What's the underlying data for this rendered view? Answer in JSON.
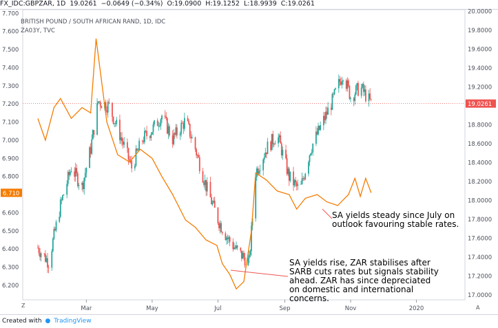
{
  "header": {
    "symbol": "FX_IDC:GBPZAR, 1D",
    "last": "19.0261",
    "change": "−0.0649 (−0.34%)",
    "open": "O:19.0900",
    "high": "H:19.1252",
    "low": "L:18.9939",
    "close": "C:19.0261",
    "series_title": "BRITISH POUND / SOUTH AFRICAN RAND, 1D, IDC",
    "overlay_title": "ZA03Y, TVC"
  },
  "annotations": {
    "note_july": "SA yields steady since July on\noutlook favouring stable rates.",
    "note_cut": "SA yields rise, ZAR stabilises after\nSARB cuts rates but signals stability\nahead. ZAR has since depreciated\non domestic and international\nconcerns."
  },
  "footer": {
    "created_with": "Created with",
    "brand": "TradingView"
  },
  "corner": {
    "left": "Z",
    "right": "A"
  },
  "colors": {
    "up": "#26a69a",
    "down": "#ef5350",
    "yield": "#f57c00",
    "last_price": "#ef5350",
    "yield_label": "#f57c00"
  },
  "chart_data": {
    "type": "line",
    "x_ticks": [
      "Mar",
      "May",
      "Jul",
      "Sep",
      "Nov",
      "2020"
    ],
    "left_axis": {
      "label": "ZA03Y",
      "ticks": [
        "7.700",
        "7.600",
        "7.500",
        "7.400",
        "7.300",
        "7.200",
        "7.100",
        "7.000",
        "6.900",
        "6.800",
        "6.600",
        "6.500",
        "6.400",
        "6.300",
        "6.200"
      ],
      "range": [
        6.12,
        7.72
      ],
      "last_value": "6.710"
    },
    "right_axis": {
      "label": "GBPZAR",
      "ticks": [
        "20.0000",
        "19.8000",
        "19.6000",
        "19.4000",
        "19.2000",
        "18.8000",
        "18.6000",
        "18.4000",
        "18.2000",
        "18.0000",
        "17.8000",
        "17.6000",
        "17.4000",
        "17.2000",
        "17.0000"
      ],
      "range": [
        16.95,
        20.02
      ],
      "last_value": "19.0261"
    },
    "series": [
      {
        "type": "candlestick",
        "axis": "right",
        "close_path": [
          [
            "2019-01-15",
            17.5
          ],
          [
            "2019-01-25",
            17.35
          ],
          [
            "2019-02-05",
            17.95
          ],
          [
            "2019-02-15",
            18.35
          ],
          [
            "2019-02-25",
            18.15
          ],
          [
            "2019-03-05",
            18.55
          ],
          [
            "2019-03-12",
            19.05
          ],
          [
            "2019-03-22",
            19.0
          ],
          [
            "2019-04-01",
            18.7
          ],
          [
            "2019-04-12",
            18.35
          ],
          [
            "2019-04-22",
            18.65
          ],
          [
            "2019-05-01",
            18.75
          ],
          [
            "2019-05-10",
            18.9
          ],
          [
            "2019-05-20",
            18.65
          ],
          [
            "2019-06-01",
            18.85
          ],
          [
            "2019-06-10",
            18.55
          ],
          [
            "2019-06-20",
            18.15
          ],
          [
            "2019-07-01",
            17.8
          ],
          [
            "2019-07-10",
            17.6
          ],
          [
            "2019-07-20",
            17.45
          ],
          [
            "2019-07-30",
            17.35
          ],
          [
            "2019-08-05",
            18.3
          ],
          [
            "2019-08-15",
            18.55
          ],
          [
            "2019-08-25",
            18.7
          ],
          [
            "2019-09-05",
            18.25
          ],
          [
            "2019-09-15",
            18.1
          ],
          [
            "2019-09-25",
            18.55
          ],
          [
            "2019-10-05",
            18.8
          ],
          [
            "2019-10-15",
            19.05
          ],
          [
            "2019-10-25",
            19.35
          ],
          [
            "2019-11-01",
            19.1
          ],
          [
            "2019-11-10",
            19.2
          ],
          [
            "2019-11-20",
            19.03
          ]
        ]
      },
      {
        "name": "ZA03Y",
        "type": "line",
        "axis": "left",
        "values": [
          [
            "2019-01-15",
            7.12
          ],
          [
            "2019-01-22",
            7.0
          ],
          [
            "2019-01-30",
            7.18
          ],
          [
            "2019-02-05",
            7.23
          ],
          [
            "2019-02-15",
            7.12
          ],
          [
            "2019-02-25",
            7.18
          ],
          [
            "2019-03-05",
            7.15
          ],
          [
            "2019-03-10",
            7.56
          ],
          [
            "2019-03-20",
            7.1
          ],
          [
            "2019-03-30",
            6.92
          ],
          [
            "2019-04-10",
            6.88
          ],
          [
            "2019-04-20",
            6.95
          ],
          [
            "2019-05-01",
            6.9
          ],
          [
            "2019-05-10",
            6.8
          ],
          [
            "2019-05-20",
            6.7
          ],
          [
            "2019-06-01",
            6.56
          ],
          [
            "2019-06-10",
            6.52
          ],
          [
            "2019-06-20",
            6.45
          ],
          [
            "2019-06-30",
            6.42
          ],
          [
            "2019-07-05",
            6.32
          ],
          [
            "2019-07-12",
            6.26
          ],
          [
            "2019-07-18",
            6.18
          ],
          [
            "2019-07-25",
            6.22
          ],
          [
            "2019-08-01",
            6.5
          ],
          [
            "2019-08-05",
            6.82
          ],
          [
            "2019-08-15",
            6.78
          ],
          [
            "2019-08-25",
            6.72
          ],
          [
            "2019-09-05",
            6.7
          ],
          [
            "2019-09-12",
            6.62
          ],
          [
            "2019-09-20",
            6.68
          ],
          [
            "2019-10-01",
            6.7
          ],
          [
            "2019-10-10",
            6.66
          ],
          [
            "2019-10-20",
            6.64
          ],
          [
            "2019-10-30",
            6.7
          ],
          [
            "2019-11-05",
            6.79
          ],
          [
            "2019-11-10",
            6.69
          ],
          [
            "2019-11-15",
            6.79
          ],
          [
            "2019-11-20",
            6.71
          ]
        ]
      }
    ]
  }
}
